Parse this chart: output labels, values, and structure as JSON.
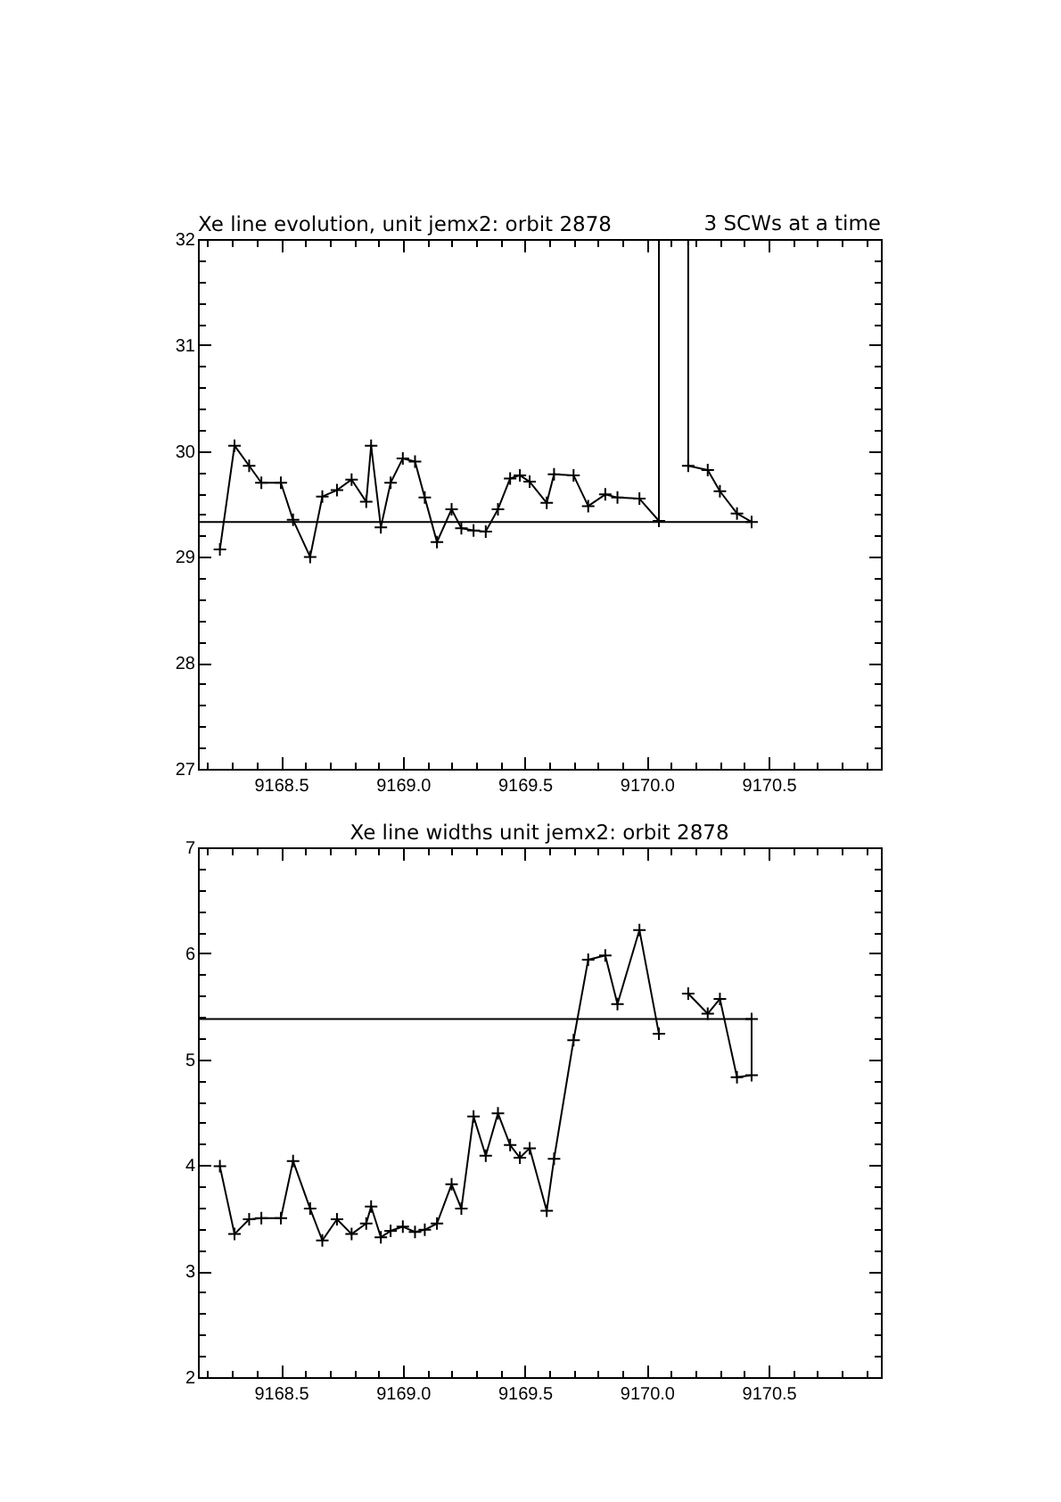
{
  "chart_data": [
    {
      "type": "line",
      "title": "Xe line evolution, unit jemx2: orbit 2878",
      "annotations": [
        "3 SCWs at a time"
      ],
      "xlim": [
        9168.16,
        9170.96
      ],
      "ylim": [
        27,
        32
      ],
      "xticks": [
        {
          "value": 9168.2,
          "label": null
        },
        {
          "value": 9168.3,
          "label": null
        },
        {
          "value": 9168.4,
          "label": null
        },
        9168.5,
        {
          "value": 9168.6,
          "label": null
        },
        {
          "value": 9168.7,
          "label": null
        },
        {
          "value": 9168.8,
          "label": null
        },
        {
          "value": 9168.9,
          "label": null
        },
        {
          "value": 9169,
          "label": "9169.0"
        },
        {
          "value": 9169.1,
          "label": null
        },
        {
          "value": 9169.2,
          "label": null
        },
        {
          "value": 9169.3,
          "label": null
        },
        {
          "value": 9169.4,
          "label": null
        },
        9169.5,
        {
          "value": 9169.6,
          "label": null
        },
        {
          "value": 9169.7,
          "label": null
        },
        {
          "value": 9169.8,
          "label": null
        },
        {
          "value": 9169.9,
          "label": null
        },
        {
          "value": 9170,
          "label": "9170.0"
        },
        {
          "value": 9170.1,
          "label": null
        },
        {
          "value": 9170.2,
          "label": null
        },
        {
          "value": 9170.3,
          "label": null
        },
        {
          "value": 9170.4,
          "label": null
        },
        9170.5,
        {
          "value": 9170.6,
          "label": null
        },
        {
          "value": 9170.7,
          "label": null
        },
        {
          "value": 9170.8,
          "label": null
        },
        {
          "value": 9170.9,
          "label": null
        }
      ],
      "yticks": [
        27,
        {
          "value": 27.2,
          "label": null
        },
        {
          "value": 27.4,
          "label": null
        },
        {
          "value": 27.6,
          "label": null
        },
        {
          "value": 27.8,
          "label": null
        },
        28,
        {
          "value": 28.2,
          "label": null
        },
        {
          "value": 28.4,
          "label": null
        },
        {
          "value": 28.6,
          "label": null
        },
        {
          "value": 28.8,
          "label": null
        },
        29,
        {
          "value": 29.2,
          "label": null
        },
        {
          "value": 29.4,
          "label": null
        },
        {
          "value": 29.6,
          "label": null
        },
        {
          "value": 29.8,
          "label": null
        },
        30,
        {
          "value": 30.2,
          "label": null
        },
        {
          "value": 30.4,
          "label": null
        },
        {
          "value": 30.6,
          "label": null
        },
        {
          "value": 30.8,
          "label": null
        },
        31,
        {
          "value": 31.2,
          "label": null
        },
        {
          "value": 31.4,
          "label": null
        },
        {
          "value": 31.6,
          "label": null
        },
        {
          "value": 31.8,
          "label": null
        },
        32
      ],
      "marker": "cross",
      "line_style": "solid",
      "series": [
        {
          "color": "#000000",
          "x": [
            9168.25,
            9168.31,
            9168.37,
            9168.42,
            9168.5,
            9168.55,
            9168.62,
            9168.67,
            9168.73,
            9168.79,
            9168.85,
            9168.87,
            9168.91,
            9168.95,
            9169.0,
            9169.05,
            9169.09,
            9169.14,
            9169.2,
            9169.24,
            9169.29,
            9169.34,
            9169.39,
            9169.44,
            9169.48,
            9169.52,
            9169.59,
            9169.62,
            9169.7,
            9169.76,
            9169.83,
            9169.88,
            9169.97,
            9170.05,
            9170.05,
            9170.17,
            9170.17,
            9170.25,
            9170.3,
            9170.37,
            9170.43
          ],
          "values": [
            29.07,
            30.05,
            29.86,
            29.7,
            29.7,
            29.35,
            29.0,
            29.57,
            29.63,
            29.73,
            29.52,
            30.05,
            29.28,
            29.7,
            29.93,
            29.9,
            29.56,
            29.14,
            29.45,
            29.27,
            29.25,
            29.24,
            29.45,
            29.74,
            29.77,
            29.71,
            29.51,
            29.78,
            29.77,
            29.48,
            29.59,
            29.56,
            29.55,
            29.34,
            32,
            32,
            29.86,
            29.82,
            29.62,
            29.41,
            29.33
          ]
        },
        {
          "color": "#000000",
          "type": "line",
          "marker": "none",
          "x": [
            9168.16,
            9170.43
          ],
          "values": [
            29.33,
            29.33
          ]
        }
      ]
    },
    {
      "type": "line",
      "title": "Xe line widths unit jemx2: orbit 2878",
      "xlim": [
        9168.16,
        9170.96
      ],
      "ylim": [
        2,
        7
      ],
      "xticks": [
        {
          "value": 9168.2,
          "label": null
        },
        {
          "value": 9168.3,
          "label": null
        },
        {
          "value": 9168.4,
          "label": null
        },
        9168.5,
        {
          "value": 9168.6,
          "label": null
        },
        {
          "value": 9168.7,
          "label": null
        },
        {
          "value": 9168.8,
          "label": null
        },
        {
          "value": 9168.9,
          "label": null
        },
        {
          "value": 9169,
          "label": "9169.0"
        },
        {
          "value": 9169.1,
          "label": null
        },
        {
          "value": 9169.2,
          "label": null
        },
        {
          "value": 9169.3,
          "label": null
        },
        {
          "value": 9169.4,
          "label": null
        },
        9169.5,
        {
          "value": 9169.6,
          "label": null
        },
        {
          "value": 9169.7,
          "label": null
        },
        {
          "value": 9169.8,
          "label": null
        },
        {
          "value": 9169.9,
          "label": null
        },
        {
          "value": 9170,
          "label": "9170.0"
        },
        {
          "value": 9170.1,
          "label": null
        },
        {
          "value": 9170.2,
          "label": null
        },
        {
          "value": 9170.3,
          "label": null
        },
        {
          "value": 9170.4,
          "label": null
        },
        9170.5,
        {
          "value": 9170.6,
          "label": null
        },
        {
          "value": 9170.7,
          "label": null
        },
        {
          "value": 9170.8,
          "label": null
        },
        {
          "value": 9170.9,
          "label": null
        }
      ],
      "yticks": [
        2,
        {
          "value": 2.2,
          "label": null
        },
        {
          "value": 2.4,
          "label": null
        },
        {
          "value": 2.6,
          "label": null
        },
        {
          "value": 2.8,
          "label": null
        },
        3,
        {
          "value": 3.2,
          "label": null
        },
        {
          "value": 3.4,
          "label": null
        },
        {
          "value": 3.6,
          "label": null
        },
        {
          "value": 3.8,
          "label": null
        },
        4,
        {
          "value": 4.2,
          "label": null
        },
        {
          "value": 4.4,
          "label": null
        },
        {
          "value": 4.6,
          "label": null
        },
        {
          "value": 4.8,
          "label": null
        },
        5,
        {
          "value": 5.2,
          "label": null
        },
        {
          "value": 5.4,
          "label": null
        },
        {
          "value": 5.6,
          "label": null
        },
        {
          "value": 5.8,
          "label": null
        },
        6,
        {
          "value": 6.2,
          "label": null
        },
        {
          "value": 6.4,
          "label": null
        },
        {
          "value": 6.6,
          "label": null
        },
        {
          "value": 6.8,
          "label": null
        },
        7
      ],
      "marker": "cross",
      "line_style": "solid",
      "series": [
        {
          "color": "#000000",
          "x": [
            9168.25,
            9168.31,
            9168.37,
            9168.42,
            9168.5,
            9168.55,
            9168.62,
            9168.67,
            9168.73,
            9168.79,
            9168.85,
            9168.87,
            9168.91,
            9168.95,
            9169.0,
            9169.05,
            9169.09,
            9169.14,
            9169.2,
            9169.24,
            9169.29,
            9169.34,
            9169.39,
            9169.44,
            9169.48,
            9169.52,
            9169.59,
            9169.62,
            9169.7,
            9169.76,
            9169.83,
            9169.88,
            9169.97,
            9170.05,
            9170.11,
            9170.17,
            9170.25,
            9170.3,
            9170.37,
            9170.43,
            9170.43
          ],
          "values": [
            3.99,
            3.35,
            3.49,
            3.5,
            3.5,
            4.04,
            3.59,
            3.29,
            3.49,
            3.35,
            3.45,
            3.61,
            3.32,
            3.38,
            3.42,
            3.37,
            3.39,
            3.45,
            3.82,
            3.59,
            4.46,
            4.09,
            4.49,
            4.19,
            4.07,
            4.16,
            3.57,
            4.06,
            5.18,
            5.94,
            5.98,
            5.52,
            6.22,
            5.24,
            null,
            5.62,
            5.43,
            5.57,
            4.83,
            4.85,
            5.38
          ]
        },
        {
          "color": "#000000",
          "type": "line",
          "marker": "none",
          "x": [
            9168.16,
            9170.43
          ],
          "values": [
            5.38,
            5.38
          ]
        }
      ]
    }
  ]
}
